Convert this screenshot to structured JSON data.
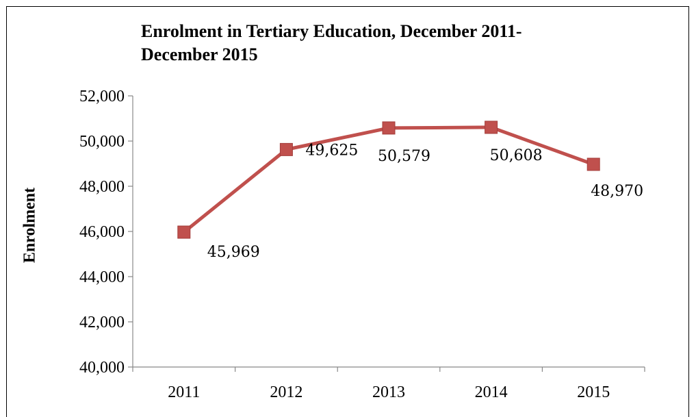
{
  "chart_data": {
    "type": "line",
    "title": "Enrolment in Tertiary Education,  December 2011-\nDecember 2015",
    "xlabel": "",
    "ylabel": "Enrolment",
    "categories": [
      "2011",
      "2012",
      "2013",
      "2014",
      "2015"
    ],
    "series": [
      {
        "values": [
          45969,
          49625,
          50579,
          50608,
          48970
        ],
        "labels": [
          "45,969",
          "49,625",
          "50,579",
          "50,608",
          "48,970"
        ],
        "color": "#c0504d",
        "marker": "square"
      }
    ],
    "ylim": [
      40000,
      52000
    ],
    "yticks": [
      {
        "value": 40000,
        "label": "40,000"
      },
      {
        "value": 42000,
        "label": "42,000"
      },
      {
        "value": 44000,
        "label": "44,000"
      },
      {
        "value": 46000,
        "label": "46,000"
      },
      {
        "value": 48000,
        "label": "48,000"
      },
      {
        "value": 50000,
        "label": "50,000"
      },
      {
        "value": 52000,
        "label": "52,000"
      }
    ],
    "grid": false,
    "legend": "none"
  }
}
